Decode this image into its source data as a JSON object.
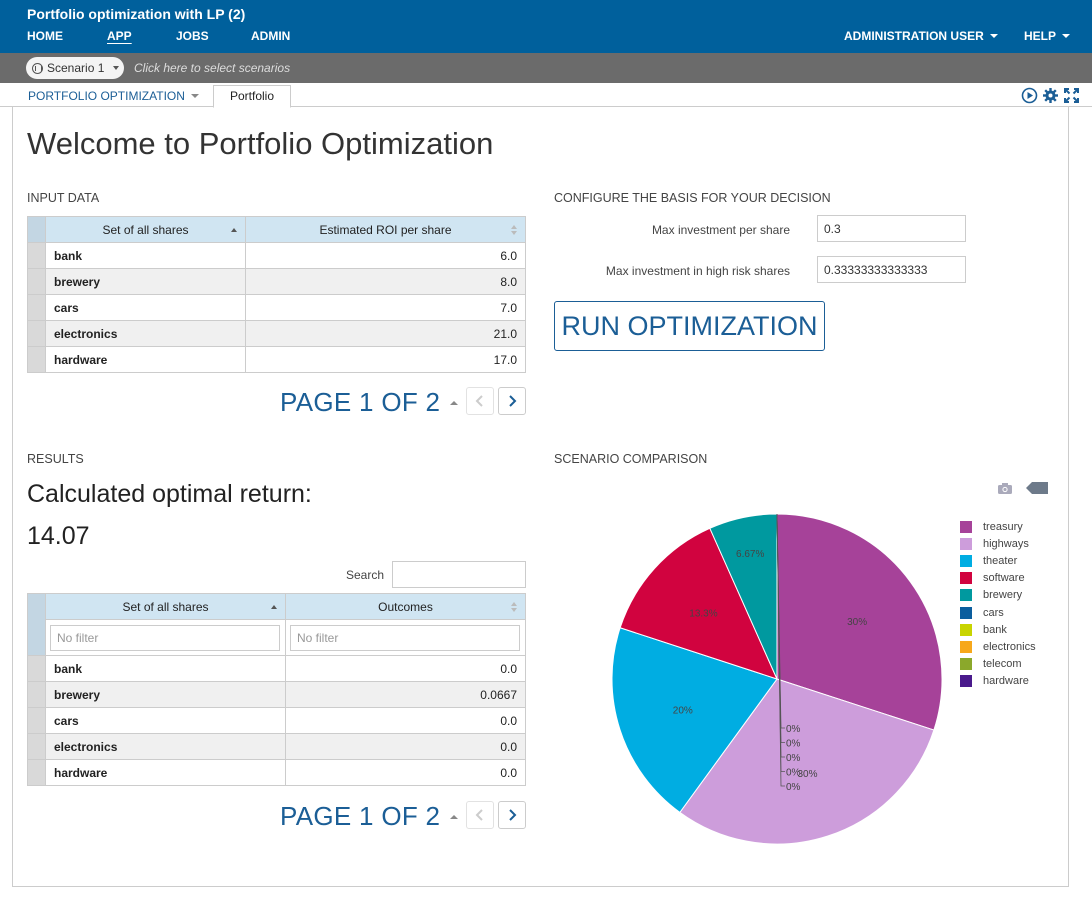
{
  "app": {
    "title": "Portfolio optimization with LP (2)"
  },
  "nav": {
    "home": "HOME",
    "app": "APP",
    "jobs": "JOBS",
    "admin": "ADMIN",
    "user": "ADMINISTRATION USER",
    "help": "HELP"
  },
  "scenario": {
    "selected": "Scenario 1",
    "hint": "Click here to select scenarios"
  },
  "tabs": {
    "main": "PORTFOLIO OPTIMIZATION",
    "active": "Portfolio"
  },
  "page": {
    "title": "Welcome to Portfolio Optimization"
  },
  "input": {
    "heading": "INPUT DATA",
    "col1": "Set of all shares",
    "col2": "Estimated ROI per share",
    "rows": [
      {
        "name": "bank",
        "value": "6.0"
      },
      {
        "name": "brewery",
        "value": "8.0"
      },
      {
        "name": "cars",
        "value": "7.0"
      },
      {
        "name": "electronics",
        "value": "21.0"
      },
      {
        "name": "hardware",
        "value": "17.0"
      }
    ],
    "pager": "PAGE 1 OF 2"
  },
  "config": {
    "heading": "CONFIGURE THE BASIS FOR YOUR DECISION",
    "max_inv_label": "Max investment per share",
    "max_inv_value": "0.3",
    "max_risk_label": "Max investment in high risk shares",
    "max_risk_value": "0.33333333333333",
    "run_label": "RUN OPTIMIZATION"
  },
  "results": {
    "heading": "RESULTS",
    "title": "Calculated optimal return:",
    "value": "14.07",
    "search_label": "Search",
    "col1": "Set of all shares",
    "col2": "Outcomes",
    "filter_placeholder": "No filter",
    "rows": [
      {
        "name": "bank",
        "value": "0.0"
      },
      {
        "name": "brewery",
        "value": "0.0667"
      },
      {
        "name": "cars",
        "value": "0.0"
      },
      {
        "name": "electronics",
        "value": "0.0"
      },
      {
        "name": "hardware",
        "value": "0.0"
      }
    ],
    "pager": "PAGE 1 OF 2"
  },
  "comparison": {
    "heading": "SCENARIO COMPARISON"
  },
  "chart_data": {
    "type": "pie",
    "series": [
      {
        "name": "treasury",
        "value": 30,
        "label": "30%",
        "color": "#a64299"
      },
      {
        "name": "highways",
        "value": 30,
        "label": "30%",
        "color": "#cd9ddb"
      },
      {
        "name": "theater",
        "value": 20,
        "label": "20%",
        "color": "#00ade2"
      },
      {
        "name": "software",
        "value": 13.3,
        "label": "13.3%",
        "color": "#d1033f"
      },
      {
        "name": "brewery",
        "value": 6.67,
        "label": "6.67%",
        "color": "#00999f"
      },
      {
        "name": "cars",
        "value": 0,
        "label": "0%",
        "color": "#0b5e9e"
      },
      {
        "name": "bank",
        "value": 0,
        "label": "0%",
        "color": "#c8d400"
      },
      {
        "name": "electronics",
        "value": 0,
        "label": "0%",
        "color": "#f7a81b"
      },
      {
        "name": "telecom",
        "value": 0,
        "label": "0%",
        "color": "#8ba82b"
      },
      {
        "name": "hardware",
        "value": 0,
        "label": "0%",
        "color": "#4a1a8c"
      }
    ],
    "legend_position": "right"
  }
}
